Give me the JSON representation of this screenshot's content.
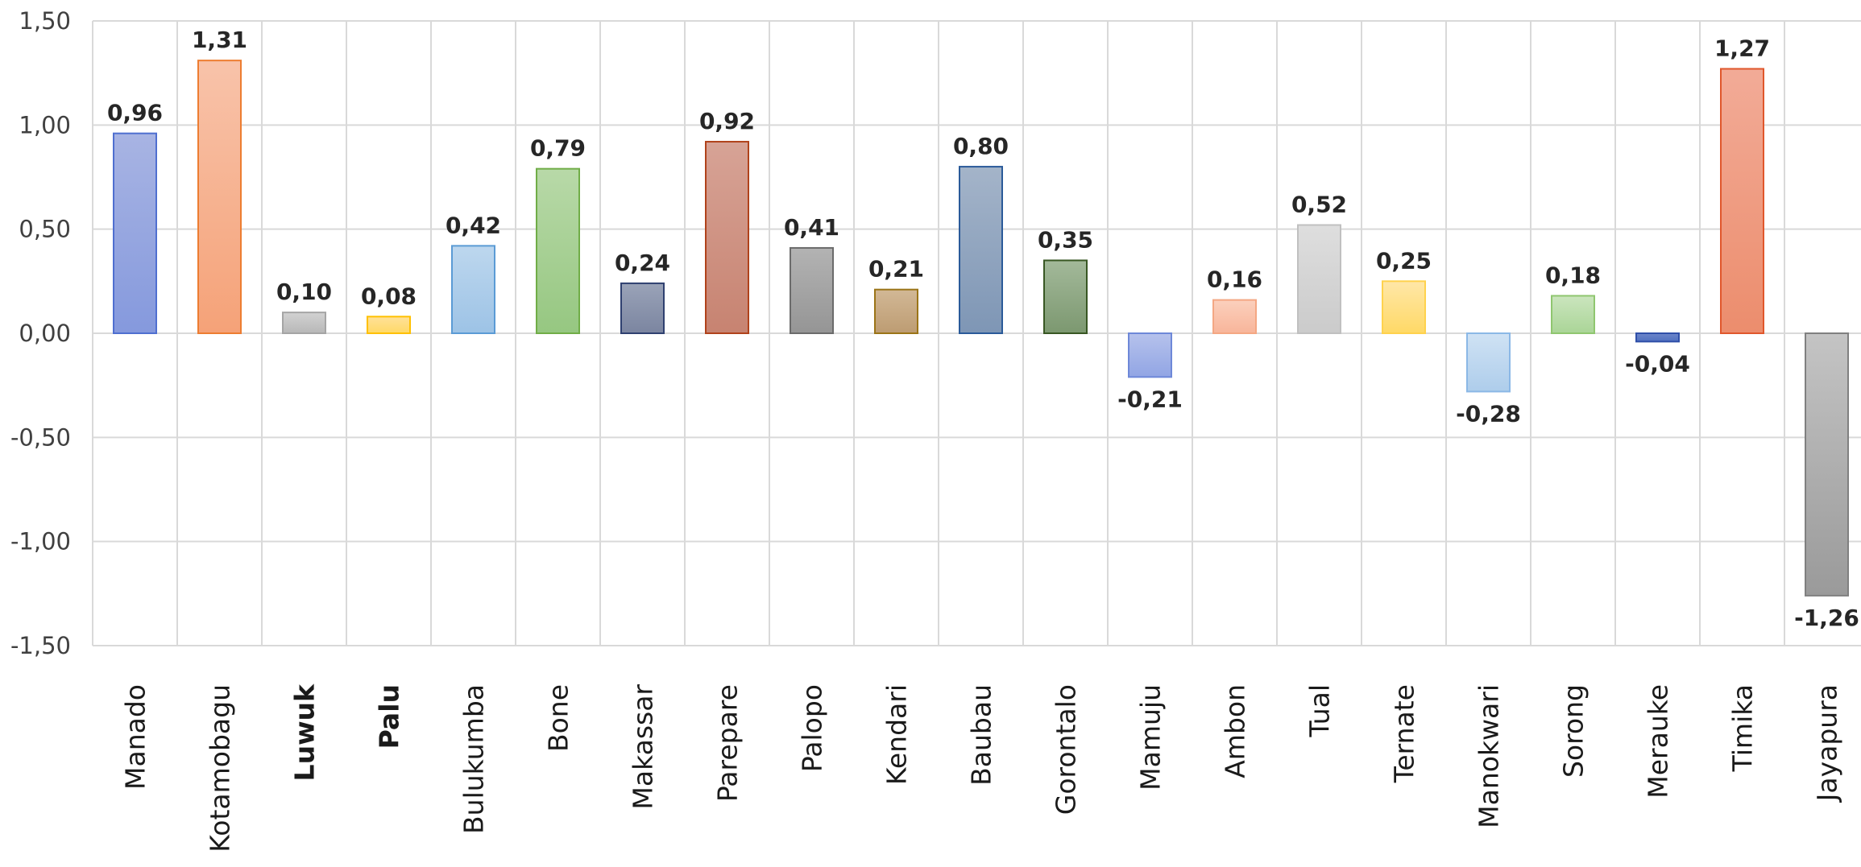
{
  "chart_data": {
    "type": "bar",
    "title": "",
    "xlabel": "",
    "ylabel": "",
    "ylim": [
      -1.5,
      1.5
    ],
    "yticks": [
      "1,50",
      "1,00",
      "0,50",
      "0,00",
      "-0,50",
      "-1,00",
      "-1,50"
    ],
    "ytick_values": [
      1.5,
      1.0,
      0.5,
      0.0,
      -0.5,
      -1.0,
      -1.5
    ],
    "grid": true,
    "legend": "none",
    "decimal_separator": ",",
    "bold_categories": [
      "Luwuk",
      "Palu"
    ],
    "categories": [
      "Manado",
      "Kotamobagu",
      "Luwuk",
      "Palu",
      "Bulukumba",
      "Bone",
      "Makassar",
      "Parepare",
      "Palopo",
      "Kendari",
      "Baubau",
      "Gorontalo",
      "Mamuju",
      "Ambon",
      "Tual",
      "Ternate",
      "Manokwari",
      "Sorong",
      "Merauke",
      "Timika",
      "Jayapura"
    ],
    "values": [
      0.96,
      1.31,
      0.1,
      0.08,
      0.42,
      0.79,
      0.24,
      0.92,
      0.41,
      0.21,
      0.8,
      0.35,
      -0.21,
      0.16,
      0.52,
      0.25,
      -0.28,
      0.18,
      -0.04,
      1.27,
      -1.26
    ],
    "data_labels": [
      "0,96",
      "1,31",
      "0,10",
      "0,08",
      "0,42",
      "0,79",
      "0,24",
      "0,92",
      "0,41",
      "0,21",
      "0,80",
      "0,35",
      "-0,21",
      "0,16",
      "0,52",
      "0,25",
      "-0,28",
      "0,18",
      "-0,04",
      "1,27",
      "-1,26"
    ],
    "colors": [
      {
        "top": "#a8b4e3",
        "bottom": "#8599dd",
        "stroke": "#4f6fd0"
      },
      {
        "top": "#f8c3aa",
        "bottom": "#f5a278",
        "stroke": "#ed7d31"
      },
      {
        "top": "#d2d2d2",
        "bottom": "#b8b8b8",
        "stroke": "#a5a5a5"
      },
      {
        "top": "#ffe199",
        "bottom": "#ffd966",
        "stroke": "#ffc000"
      },
      {
        "top": "#bdd7ee",
        "bottom": "#9dc3e6",
        "stroke": "#5b9bd5"
      },
      {
        "top": "#b8d9a8",
        "bottom": "#96c781",
        "stroke": "#70ad47"
      },
      {
        "top": "#9aa3b8",
        "bottom": "#7b85a0",
        "stroke": "#2f4070"
      },
      {
        "top": "#d7a396",
        "bottom": "#c78371",
        "stroke": "#b0421b"
      },
      {
        "top": "#b3b3b3",
        "bottom": "#959595",
        "stroke": "#6b6b6b"
      },
      {
        "top": "#d2b896",
        "bottom": "#bd9c72",
        "stroke": "#9b7417"
      },
      {
        "top": "#a4b4c9",
        "bottom": "#7e96b5",
        "stroke": "#2a5a99"
      },
      {
        "top": "#a3b99a",
        "bottom": "#7c9870",
        "stroke": "#385723"
      },
      {
        "top": "#b6c2ec",
        "bottom": "#91a5e4",
        "stroke": "#6e88d8"
      },
      {
        "top": "#fbd0bd",
        "bottom": "#f8b59a",
        "stroke": "#f4a783"
      },
      {
        "top": "#dedede",
        "bottom": "#cbcbcb",
        "stroke": "#c0c0c0"
      },
      {
        "top": "#ffe7a8",
        "bottom": "#ffd966",
        "stroke": "#ffd24d"
      },
      {
        "top": "#cfe2f4",
        "bottom": "#aecdeb",
        "stroke": "#8bb8e6"
      },
      {
        "top": "#cbe5be",
        "bottom": "#aad597",
        "stroke": "#8fc66f"
      },
      {
        "top": "#6d86c9",
        "bottom": "#4f6fc0",
        "stroke": "#2f4fa8"
      },
      {
        "top": "#f2ab97",
        "bottom": "#ec8d6d",
        "stroke": "#e0572c"
      },
      {
        "top": "#c4c4c4",
        "bottom": "#9a9a9a",
        "stroke": "#808080"
      }
    ]
  }
}
